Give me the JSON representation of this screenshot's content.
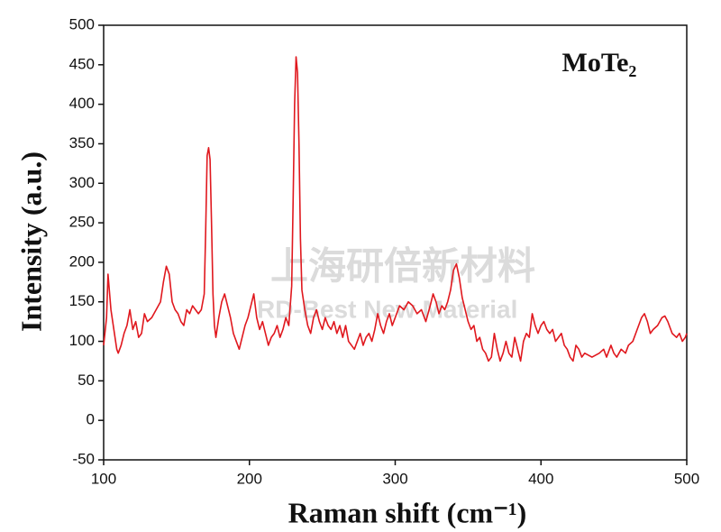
{
  "chart_data": {
    "type": "line",
    "annotation": "MoTe₂",
    "xlabel": "Raman shift (cm⁻¹)",
    "ylabel": "Intensity (a.u.)",
    "watermark": [
      "上海研倍新材料",
      "RD-Best New Material"
    ],
    "xlim": [
      100,
      500
    ],
    "xticks": [
      100,
      200,
      300,
      400,
      500
    ],
    "ylim": [
      -50,
      500
    ],
    "yticks": [
      -50,
      0,
      50,
      100,
      150,
      200,
      250,
      300,
      350,
      400,
      450,
      500
    ],
    "series": [
      {
        "color": "#e0181e",
        "x": [
          100,
          102,
          103,
          105,
          107,
          109,
          110,
          112,
          114,
          116,
          118,
          120,
          122,
          124,
          126,
          128,
          130,
          133,
          136,
          139,
          141,
          143,
          145,
          147,
          149,
          151,
          153,
          155,
          157,
          159,
          161,
          163,
          165,
          167,
          169,
          170,
          171,
          172,
          173,
          174,
          175,
          176,
          177,
          179,
          181,
          183,
          185,
          187,
          189,
          191,
          193,
          195,
          197,
          199,
          201,
          203,
          205,
          207,
          209,
          211,
          213,
          215,
          217,
          219,
          221,
          223,
          225,
          227,
          229,
          230,
          231,
          232,
          233,
          234,
          235,
          236,
          238,
          240,
          242,
          244,
          246,
          248,
          250,
          252,
          254,
          256,
          258,
          260,
          262,
          264,
          266,
          268,
          270,
          272,
          274,
          276,
          278,
          280,
          282,
          284,
          286,
          288,
          290,
          292,
          294,
          296,
          298,
          300,
          303,
          306,
          309,
          312,
          315,
          318,
          321,
          324,
          326,
          328,
          330,
          332,
          334,
          336,
          338,
          340,
          342,
          344,
          346,
          348,
          350,
          352,
          354,
          356,
          358,
          360,
          362,
          364,
          366,
          368,
          370,
          372,
          374,
          376,
          378,
          380,
          382,
          384,
          386,
          388,
          390,
          392,
          394,
          396,
          398,
          400,
          402,
          404,
          406,
          408,
          410,
          412,
          414,
          416,
          418,
          420,
          422,
          424,
          426,
          428,
          430,
          435,
          440,
          443,
          445,
          448,
          450,
          452,
          455,
          458,
          460,
          463,
          466,
          469,
          471,
          473,
          475,
          477,
          480,
          483,
          485,
          487,
          490,
          493,
          495,
          497,
          499,
          500
        ],
        "values": [
          95,
          130,
          185,
          140,
          115,
          90,
          85,
          95,
          110,
          120,
          140,
          115,
          125,
          105,
          110,
          135,
          125,
          130,
          140,
          150,
          175,
          195,
          185,
          150,
          140,
          135,
          125,
          120,
          140,
          135,
          145,
          140,
          135,
          140,
          160,
          240,
          335,
          345,
          330,
          250,
          160,
          120,
          105,
          130,
          150,
          160,
          145,
          130,
          110,
          100,
          90,
          105,
          120,
          130,
          145,
          160,
          130,
          115,
          125,
          110,
          95,
          105,
          110,
          120,
          105,
          115,
          130,
          120,
          170,
          280,
          400,
          460,
          440,
          350,
          230,
          165,
          140,
          120,
          110,
          130,
          140,
          125,
          115,
          130,
          120,
          115,
          125,
          110,
          120,
          105,
          120,
          100,
          95,
          90,
          100,
          110,
          95,
          105,
          110,
          100,
          115,
          135,
          120,
          110,
          125,
          135,
          120,
          130,
          145,
          140,
          150,
          145,
          135,
          140,
          125,
          145,
          160,
          150,
          135,
          145,
          140,
          150,
          165,
          190,
          198,
          180,
          155,
          140,
          125,
          115,
          120,
          100,
          105,
          90,
          85,
          75,
          80,
          110,
          90,
          75,
          85,
          100,
          85,
          80,
          105,
          90,
          75,
          100,
          110,
          105,
          135,
          120,
          110,
          120,
          125,
          115,
          110,
          115,
          100,
          105,
          110,
          95,
          90,
          80,
          75,
          95,
          90,
          80,
          85,
          80,
          85,
          90,
          80,
          95,
          85,
          80,
          90,
          85,
          95,
          100,
          115,
          130,
          135,
          125,
          110,
          115,
          120,
          130,
          132,
          125,
          110,
          105,
          110,
          100,
          105,
          110
        ]
      }
    ]
  }
}
